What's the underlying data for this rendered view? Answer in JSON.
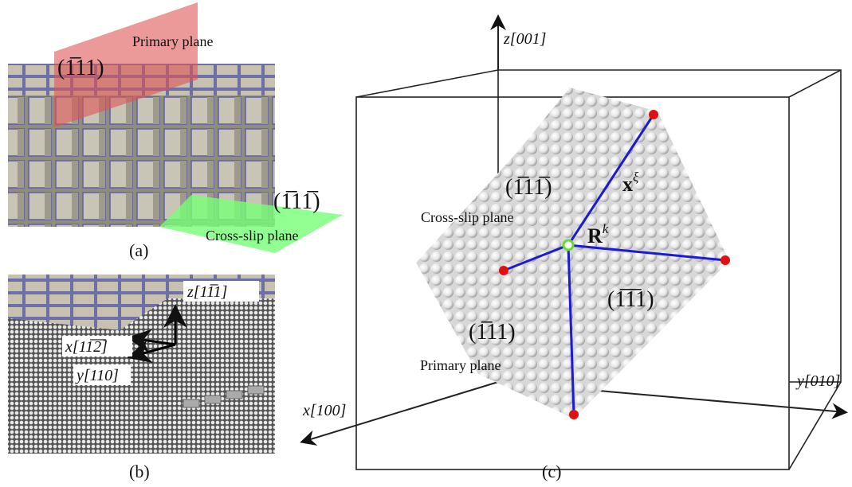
{
  "panel_a": {
    "label": "(a)",
    "primary_plane_index": "(1̅11)",
    "primary_plane": "Primary plane",
    "cross_slip_index": "(1̅11̅)",
    "cross_slip_plane": "Cross-slip plane"
  },
  "panel_b": {
    "label": "(b)",
    "axes": [
      "z[11̅1]",
      "x[11̅2̅]",
      "y[110]"
    ]
  },
  "panel_c": {
    "label": "(c)",
    "axes": {
      "z": "z[001]",
      "y": "y[010]",
      "x": "x[100]"
    },
    "cross_slip_index": "(1̅11̅)",
    "cross_slip_plane": "Cross-slip plane",
    "center": {
      "base": "R",
      "sup": "k"
    },
    "vector": {
      "base": "x",
      "sup": "ξ"
    },
    "third_index": "(1̅1̅1)",
    "primary_plane_index": "(1̅11)",
    "primary_plane": "Primary plane"
  }
}
